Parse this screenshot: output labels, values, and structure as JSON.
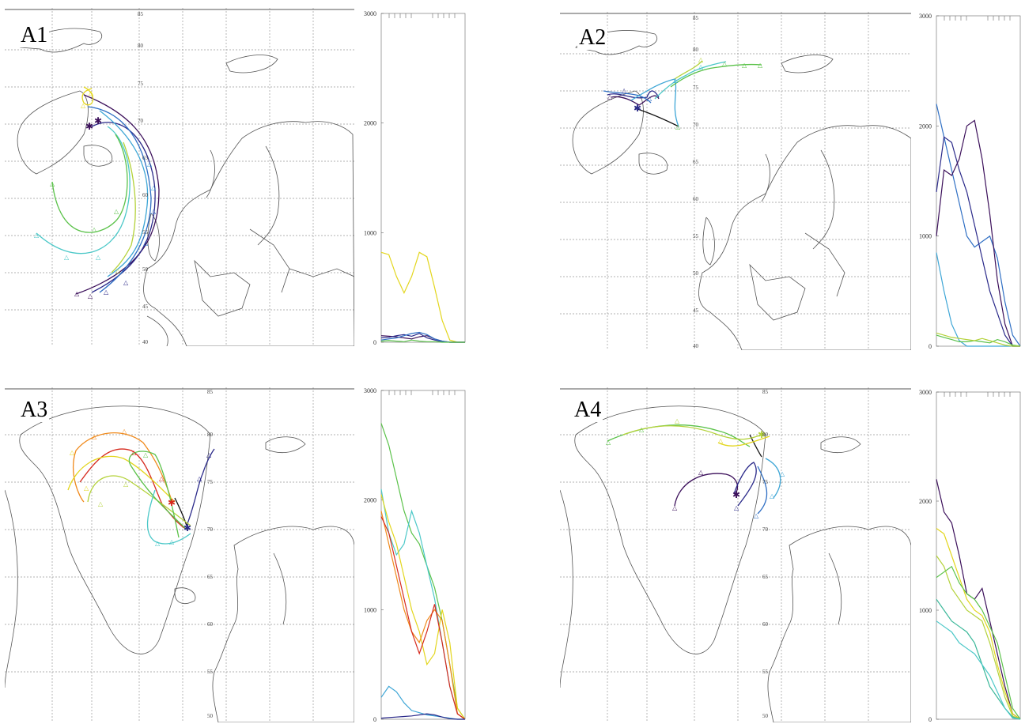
{
  "colors": {
    "coast": "#555555",
    "grid": "#999999",
    "traj_black": "#111111",
    "traj_purple": "#3b0f5a",
    "traj_navy": "#2b2a8a",
    "traj_blue": "#2f6fc4",
    "traj_lightblue": "#3ea6d6",
    "traj_cyan": "#4cc8c8",
    "traj_teal": "#3cb89a",
    "traj_green": "#5bc24a",
    "traj_yellowgreen": "#b4d23a",
    "traj_yellow": "#e3d61e",
    "traj_orange": "#f08a1c",
    "traj_red": "#d62a1e"
  },
  "panels": [
    {
      "id": "A1",
      "label": "A1",
      "lat_labels": [
        "85",
        "80",
        "75",
        "70",
        "65",
        "60",
        "55",
        "50",
        "45",
        "40"
      ],
      "profile": {
        "y_ticks": [
          "3000",
          "2000",
          "1000",
          "0"
        ],
        "ylim": [
          0,
          3000
        ],
        "series": [
          {
            "color": "traj_yellow",
            "values": [
              820,
              800,
              600,
              450,
              600,
              820,
              780,
              500,
              200,
              20,
              0,
              0
            ]
          },
          {
            "color": "traj_purple",
            "values": [
              60,
              55,
              50,
              40,
              30,
              50,
              60,
              30,
              10,
              0,
              0,
              0
            ]
          },
          {
            "color": "traj_navy",
            "values": [
              40,
              45,
              60,
              70,
              55,
              80,
              40,
              20,
              5,
              0,
              0,
              0
            ]
          },
          {
            "color": "traj_blue",
            "values": [
              20,
              30,
              40,
              60,
              80,
              90,
              70,
              30,
              10,
              0,
              0,
              0
            ]
          },
          {
            "color": "traj_green",
            "values": [
              10,
              15,
              10,
              5,
              20,
              10,
              5,
              5,
              0,
              0,
              0,
              0
            ]
          }
        ]
      }
    },
    {
      "id": "A2",
      "label": "A2",
      "lat_labels": [
        "85",
        "80",
        "75",
        "70",
        "65",
        "60",
        "55",
        "50",
        "45",
        "40"
      ],
      "profile": {
        "y_ticks": [
          "3000",
          "2000",
          "1000",
          "0"
        ],
        "ylim": [
          0,
          3000
        ],
        "series": [
          {
            "color": "traj_blue",
            "values": [
              2200,
              1900,
              1600,
              1300,
              1000,
              900,
              950,
              1000,
              800,
              400,
              100,
              0
            ]
          },
          {
            "color": "traj_navy",
            "values": [
              1400,
              1900,
              1850,
              1600,
              1400,
              1100,
              800,
              500,
              300,
              100,
              0,
              0
            ]
          },
          {
            "color": "traj_purple",
            "values": [
              1000,
              1600,
              1550,
              1700,
              2000,
              2050,
              1700,
              1200,
              600,
              200,
              0,
              0
            ]
          },
          {
            "color": "traj_lightblue",
            "values": [
              850,
              500,
              200,
              50,
              0,
              0,
              0,
              0,
              0,
              0,
              0,
              0
            ]
          },
          {
            "color": "traj_green",
            "values": [
              100,
              80,
              60,
              40,
              40,
              50,
              40,
              30,
              60,
              40,
              10,
              0
            ]
          },
          {
            "color": "traj_yellowgreen",
            "values": [
              120,
              100,
              80,
              70,
              60,
              50,
              70,
              50,
              30,
              10,
              0,
              0
            ]
          }
        ]
      }
    },
    {
      "id": "A3",
      "label": "A3",
      "lat_labels": [
        "85",
        "80",
        "75",
        "70",
        "65",
        "60",
        "55",
        "50"
      ],
      "profile": {
        "y_ticks": [
          "3000",
          "2000",
          "1000",
          "0"
        ],
        "ylim": [
          0,
          3000
        ],
        "series": [
          {
            "color": "traj_green",
            "values": [
              2700,
              2500,
              2200,
              1900,
              1700,
              1600,
              1400,
              1200,
              900,
              500,
              100,
              0
            ]
          },
          {
            "color": "traj_cyan",
            "values": [
              2100,
              1700,
              1500,
              1600,
              1900,
              1700,
              1400,
              1100,
              700,
              300,
              50,
              0
            ]
          },
          {
            "color": "traj_yellow",
            "values": [
              2050,
              1800,
              1600,
              1300,
              1000,
              800,
              500,
              600,
              1000,
              700,
              100,
              0
            ]
          },
          {
            "color": "traj_orange",
            "values": [
              1900,
              1600,
              1300,
              1000,
              800,
              700,
              900,
              1000,
              900,
              500,
              50,
              0
            ]
          },
          {
            "color": "traj_red",
            "values": [
              1850,
              1700,
              1400,
              1100,
              800,
              600,
              800,
              1050,
              700,
              300,
              50,
              0
            ]
          },
          {
            "color": "traj_lightblue",
            "values": [
              200,
              300,
              250,
              150,
              80,
              60,
              40,
              30,
              20,
              10,
              0,
              0
            ]
          },
          {
            "color": "traj_navy",
            "values": [
              10,
              15,
              20,
              25,
              30,
              40,
              50,
              40,
              20,
              5,
              0,
              0
            ]
          }
        ]
      }
    },
    {
      "id": "A4",
      "label": "A4",
      "lat_labels": [
        "85",
        "80",
        "75",
        "70",
        "65",
        "60",
        "55",
        "50"
      ],
      "profile": {
        "y_ticks": [
          "3000",
          "2000",
          "1000",
          "0"
        ],
        "ylim": [
          0,
          3000
        ],
        "series": [
          {
            "color": "traj_purple",
            "values": [
              2200,
              1900,
              1800,
              1500,
              1150,
              1100,
              1200,
              900,
              600,
              300,
              50,
              0
            ]
          },
          {
            "color": "traj_yellow",
            "values": [
              1750,
              1700,
              1500,
              1300,
              1100,
              1000,
              950,
              800,
              500,
              250,
              50,
              0
            ]
          },
          {
            "color": "traj_yellowgreen",
            "values": [
              1500,
              1400,
              1200,
              1100,
              1000,
              950,
              900,
              700,
              450,
              200,
              30,
              0
            ]
          },
          {
            "color": "traj_green",
            "values": [
              1300,
              1350,
              1400,
              1250,
              1150,
              1100,
              1000,
              850,
              700,
              400,
              100,
              0
            ]
          },
          {
            "color": "traj_teal",
            "values": [
              1100,
              1000,
              900,
              850,
              800,
              700,
              500,
              300,
              200,
              100,
              20,
              0
            ]
          },
          {
            "color": "traj_cyan",
            "values": [
              900,
              850,
              800,
              700,
              650,
              600,
              500,
              400,
              250,
              100,
              10,
              0
            ]
          }
        ]
      }
    }
  ]
}
